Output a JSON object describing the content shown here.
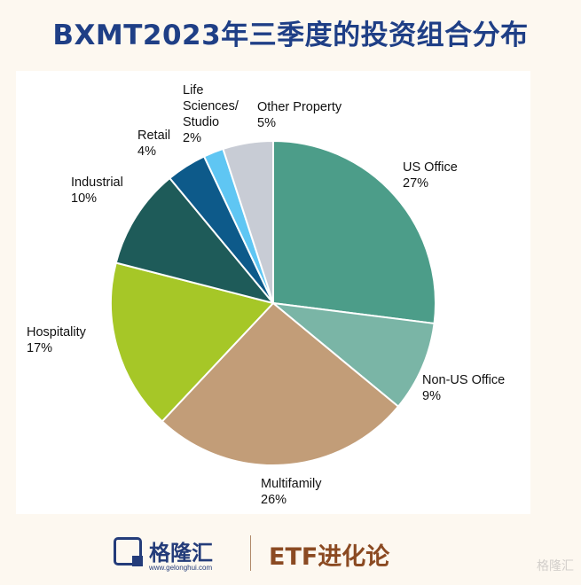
{
  "title": "BXMT2023年三季度的投资组合分布",
  "chart_data": {
    "type": "pie",
    "title": "BXMT2023年三季度的投资组合分布",
    "slices": [
      {
        "label": "US Office",
        "pct_text": "27%",
        "value": 27,
        "color": "#4c9d89"
      },
      {
        "label": "Non-US Office",
        "pct_text": "9%",
        "value": 9,
        "color": "#7ab5a6"
      },
      {
        "label": "Multifamily",
        "pct_text": "26%",
        "value": 26,
        "color": "#c29d78"
      },
      {
        "label": "Hospitality",
        "pct_text": "17%",
        "value": 17,
        "color": "#a6c727"
      },
      {
        "label": "Industrial",
        "pct_text": "10%",
        "value": 10,
        "color": "#1e5b59"
      },
      {
        "label": "Retail",
        "pct_text": "4%",
        "value": 4,
        "color": "#0d5a8a"
      },
      {
        "label": "Life\nSciences/\nStudio",
        "pct_text": "2%",
        "value": 2,
        "color": "#5fc6f3"
      },
      {
        "label": "Other Property",
        "pct_text": "5%",
        "value": 5,
        "color": "#c8ccd5"
      }
    ],
    "start": "12 o'clock",
    "direction": "clockwise",
    "legend": "none"
  },
  "footer": {
    "brand": "格隆汇",
    "brand_url": "www.gelonghui.com",
    "section": "ETF进化论",
    "watermark": "格隆汇"
  }
}
